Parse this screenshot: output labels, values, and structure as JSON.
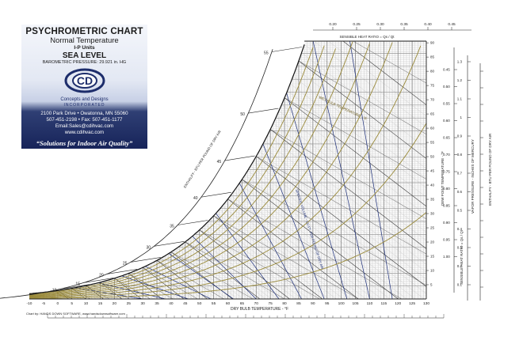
{
  "panel": {
    "title": "PSYCHROMETRIC CHART",
    "subtitle": "Normal Temperature",
    "units": "I-P Units",
    "level": "SEA LEVEL",
    "pressure": "BAROMETRIC PRESSURE: 29.921 in. HG",
    "logo_text": "CD",
    "company": "Concepts and Designs",
    "company_sub": "INCORPORATED",
    "address": "2100 Park Drive • Owatonna, MN 55060",
    "phone": "507-451-2198 • Fax: 507-451-1177",
    "email": "Email:Sales@cdihvac.com",
    "web": "www.cdihvac.com",
    "tagline": "“Solutions for Indoor Air Quality”",
    "brand_color": "#1d2d6b"
  },
  "chart_data": {
    "type": "line",
    "title": "PSYCHROMETRIC CHART",
    "xlabel": "DRY BULB TEMPERATURE - °F",
    "x_ticks": [
      -10,
      -5,
      0,
      5,
      10,
      15,
      20,
      25,
      30,
      35,
      40,
      45,
      50,
      55,
      60,
      65,
      70,
      75,
      80,
      85,
      90,
      95,
      100,
      105,
      110,
      115,
      120,
      125,
      130
    ],
    "xlim": [
      -10,
      130
    ],
    "ylabel_right": "HUMIDITY RATIO - GRAINS OF MOISTURE PER POUND OF DRY AIR",
    "y_ticks_right": [
      5,
      10,
      15,
      20,
      25,
      30,
      35,
      40,
      45,
      50,
      55,
      60,
      65,
      70,
      75,
      80,
      85,
      90
    ],
    "dew_point_label": "DEW POINT TEMPERATURE - °F",
    "sensible_heat_label": "SENSIBLE HEAT RATIO = Qs / Qt",
    "shr_ticks": [
      "0.20",
      "0.25",
      "0.30",
      "0.35",
      "0.40",
      "0.45"
    ],
    "shr_side_ticks": [
      "0.45",
      "0.50",
      "0.55",
      "0.60",
      "0.65",
      "0.70",
      "0.75",
      "0.80",
      "0.85",
      "0.90",
      "0.95",
      "1.00"
    ],
    "vapor_pressure_label": "VAPOR PRESSURE - INCHES OF MERCURY",
    "vapor_ticks": [
      "1.3",
      "1.2",
      "1.1",
      "1",
      "0.9",
      "0.8",
      "0.7",
      "0.6",
      "0.5",
      "0.4",
      "0.3",
      "0.2",
      "0.1"
    ],
    "enthalpy_label": "ENTHALPY - BTU PER POUND OF DRY AIR",
    "enthalpy_ticks": [
      10,
      15,
      20,
      25,
      30,
      35,
      40,
      45,
      50,
      55
    ],
    "wet_bulb_label": "WET BULB TEMPERATURE - °F",
    "specific_volume_label": "SPECIFIC VOLUME - CU.FT. PER POUND OF DRY AIR",
    "rh_curves": [
      10,
      20,
      30,
      40,
      50,
      60,
      70,
      80,
      90,
      100
    ],
    "footer": "Chart by: HANDS DOWN SOFTWARE, www.handsdownsoftware.com"
  }
}
